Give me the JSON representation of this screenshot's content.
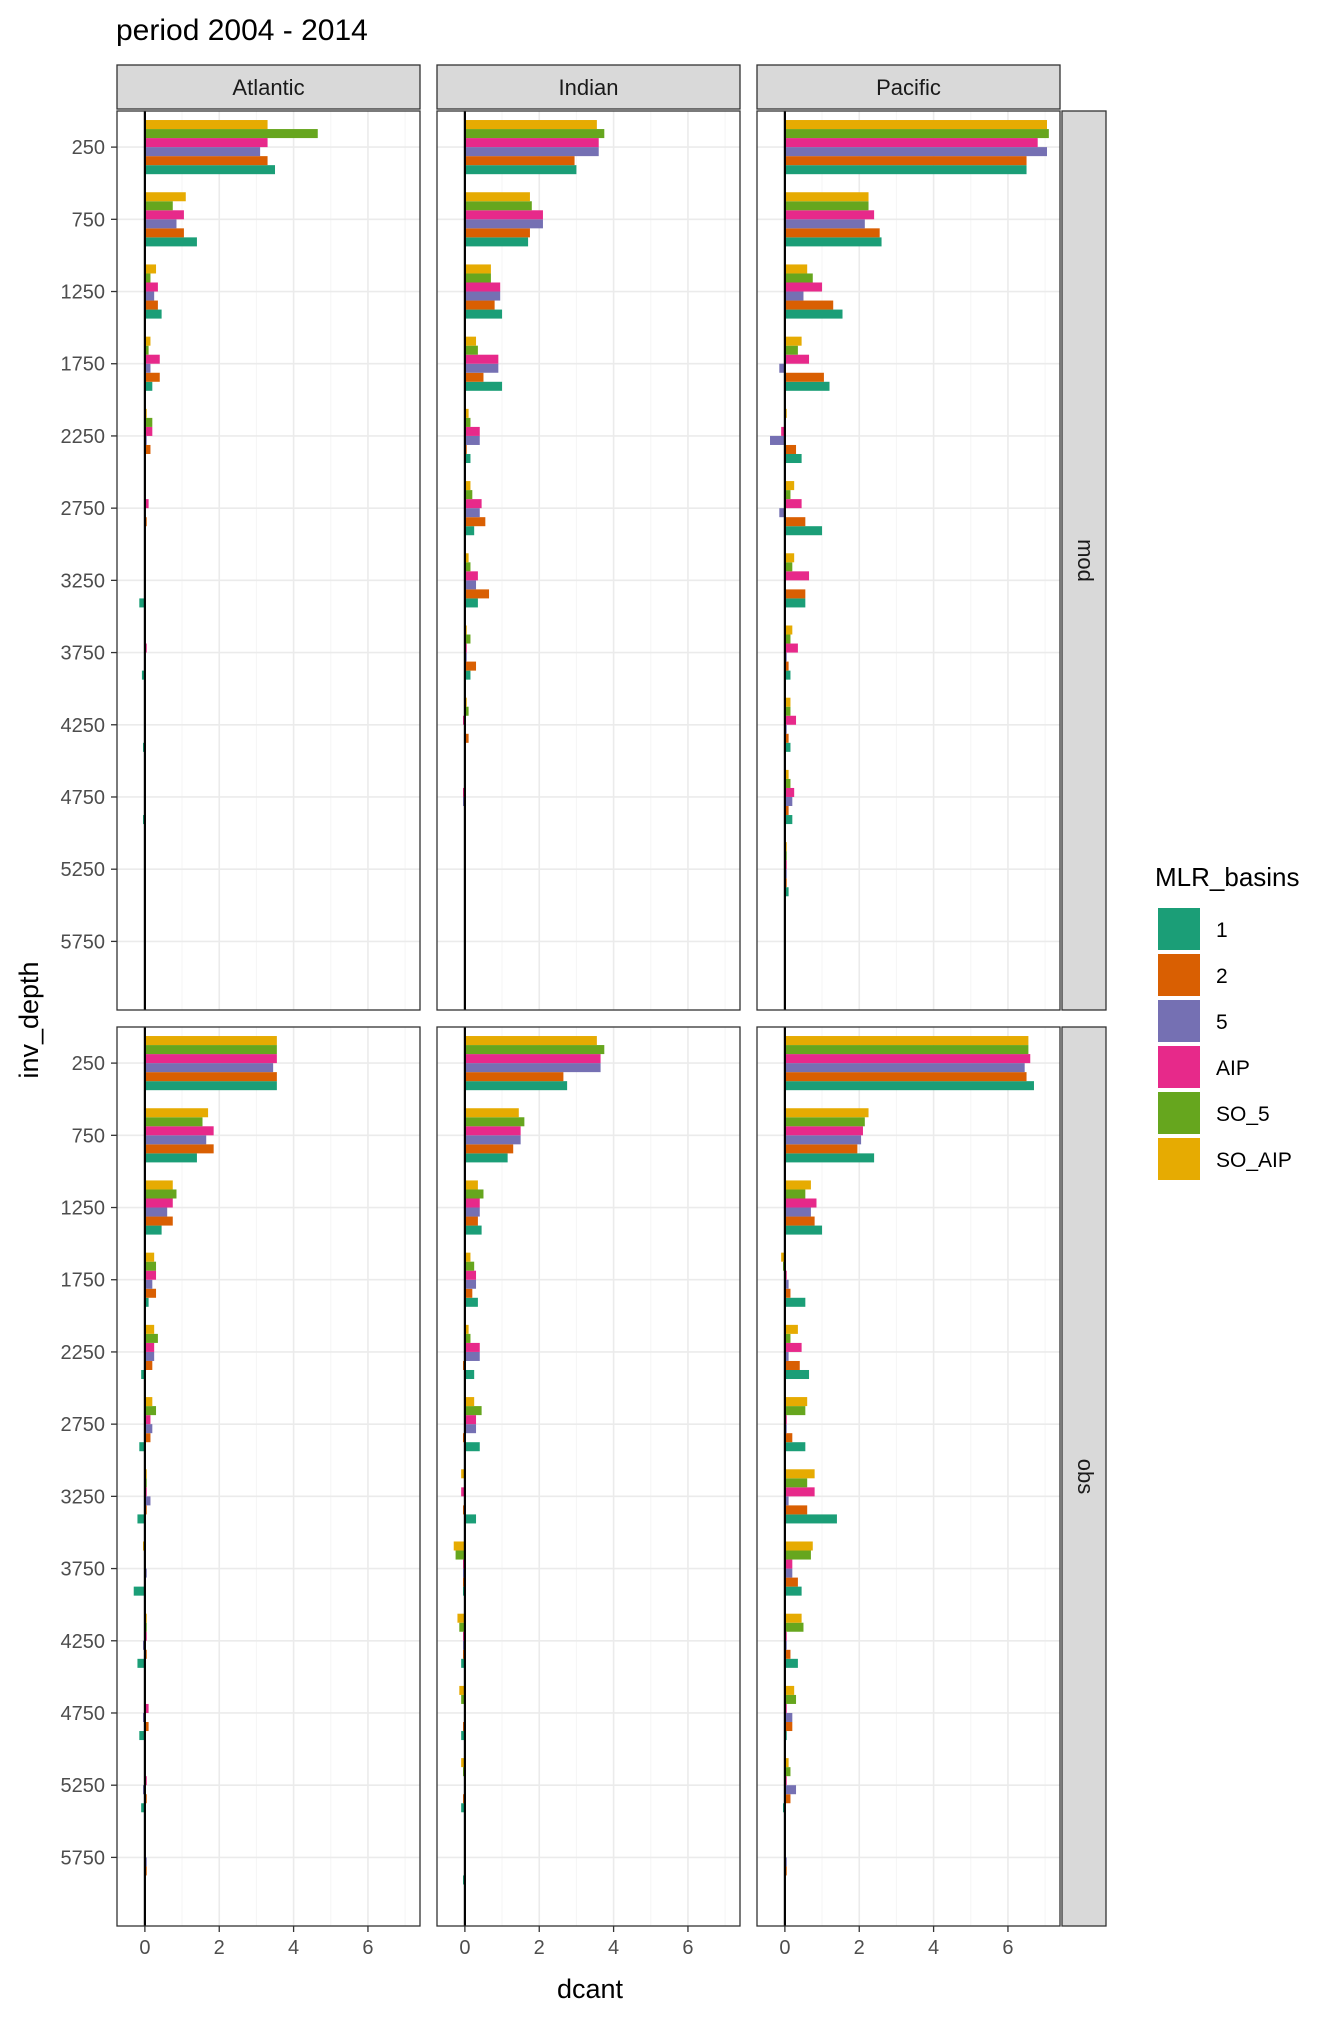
{
  "chart_data": {
    "type": "bar",
    "orientation": "horizontal",
    "title": "period 2004 - 2014",
    "xlabel": "dcant",
    "ylabel": "inv_depth",
    "xlim": [
      -0.75,
      7.4
    ],
    "x_ticks": [
      0,
      2,
      4,
      6
    ],
    "x_tick_labels": [
      "0",
      "2",
      "4",
      "6"
    ],
    "depths": [
      "250",
      "750",
      "1250",
      "1750",
      "2250",
      "2750",
      "3250",
      "3750",
      "4250",
      "4750",
      "5250",
      "5750"
    ],
    "basins": [
      "Atlantic",
      "Indian",
      "Pacific"
    ],
    "rows": [
      "mod",
      "obs"
    ],
    "grid": true,
    "legend": {
      "title": "MLR_basins",
      "position": "right",
      "entries": [
        "1",
        "2",
        "5",
        "AIP",
        "SO_5",
        "SO_AIP"
      ]
    },
    "colors": {
      "1": "#1b9e77",
      "2": "#d95f02",
      "5": "#7570b3",
      "AIP": "#e7298a",
      "SO_5": "#66a61e",
      "SO_AIP": "#e6ab02",
      "strip_fill": "#d9d9d9",
      "grid_major": "#ebebeb",
      "grid_minor": "#f5f5f5"
    },
    "panels": [
      {
        "row": "mod",
        "basin": "Atlantic",
        "series": {
          "1": [
            3.5,
            1.4,
            0.45,
            0.2,
            0.0,
            0.0,
            -0.15,
            -0.08,
            -0.05,
            -0.05,
            0.0,
            0.0
          ],
          "2": [
            3.3,
            1.05,
            0.35,
            0.4,
            0.15,
            0.05,
            0.0,
            0.02,
            0.0,
            0.0,
            0.0,
            0.0
          ],
          "5": [
            3.1,
            0.85,
            0.25,
            0.15,
            0.05,
            0.0,
            0.0,
            0.02,
            0.0,
            0.0,
            0.0,
            0.0
          ],
          "AIP": [
            3.3,
            1.05,
            0.35,
            0.4,
            0.2,
            0.1,
            0.0,
            0.05,
            0.0,
            0.0,
            0.0,
            0.0
          ],
          "SO_5": [
            4.65,
            0.75,
            0.15,
            0.1,
            0.2,
            0.0,
            0.0,
            0.0,
            0.0,
            0.0,
            0.0,
            0.0
          ],
          "SO_AIP": [
            3.3,
            1.1,
            0.3,
            0.15,
            0.05,
            0.02,
            0.0,
            0.0,
            0.0,
            0.0,
            0.0,
            0.0
          ]
        }
      },
      {
        "row": "mod",
        "basin": "Indian",
        "series": {
          "1": [
            3.0,
            1.7,
            1.0,
            1.0,
            0.15,
            0.25,
            0.35,
            0.15,
            0.0,
            0.0,
            0.0,
            0.0
          ],
          "2": [
            2.95,
            1.75,
            0.8,
            0.5,
            0.05,
            0.55,
            0.65,
            0.3,
            0.1,
            0.0,
            0.0,
            0.0
          ],
          "5": [
            3.6,
            2.1,
            0.95,
            0.9,
            0.4,
            0.4,
            0.3,
            0.05,
            0.0,
            -0.05,
            0.0,
            0.0
          ],
          "AIP": [
            3.6,
            2.1,
            0.95,
            0.9,
            0.4,
            0.45,
            0.35,
            0.05,
            -0.05,
            -0.05,
            0.0,
            0.0
          ],
          "SO_5": [
            3.75,
            1.8,
            0.7,
            0.35,
            0.15,
            0.2,
            0.15,
            0.15,
            0.1,
            0.0,
            0.0,
            0.0
          ],
          "SO_AIP": [
            3.55,
            1.75,
            0.7,
            0.3,
            0.1,
            0.15,
            0.1,
            0.05,
            0.05,
            0.0,
            0.0,
            0.0
          ]
        }
      },
      {
        "row": "mod",
        "basin": "Pacific",
        "series": {
          "1": [
            6.5,
            2.6,
            1.55,
            1.2,
            0.45,
            1.0,
            0.55,
            0.15,
            0.15,
            0.2,
            0.1,
            0.0
          ],
          "2": [
            6.5,
            2.55,
            1.3,
            1.05,
            0.3,
            0.55,
            0.55,
            0.1,
            0.1,
            0.1,
            0.05,
            0.0
          ],
          "5": [
            7.05,
            2.15,
            0.5,
            -0.15,
            -0.4,
            -0.15,
            0.0,
            0.05,
            0.05,
            0.2,
            0.05,
            0.0
          ],
          "AIP": [
            6.8,
            2.4,
            1.0,
            0.65,
            -0.1,
            0.45,
            0.65,
            0.35,
            0.3,
            0.25,
            0.05,
            0.0
          ],
          "SO_5": [
            7.1,
            2.25,
            0.75,
            0.35,
            0.0,
            0.15,
            0.2,
            0.15,
            0.15,
            0.15,
            0.05,
            0.0
          ],
          "SO_AIP": [
            7.05,
            2.25,
            0.6,
            0.45,
            0.05,
            0.25,
            0.25,
            0.2,
            0.15,
            0.1,
            0.05,
            0.0
          ]
        }
      },
      {
        "row": "obs",
        "basin": "Atlantic",
        "series": {
          "1": [
            3.55,
            1.4,
            0.45,
            0.1,
            -0.1,
            -0.15,
            -0.2,
            -0.3,
            -0.2,
            -0.15,
            -0.1,
            0.0
          ],
          "2": [
            3.55,
            1.85,
            0.75,
            0.3,
            0.2,
            0.15,
            0.05,
            0.0,
            0.05,
            0.1,
            0.05,
            0.05
          ],
          "5": [
            3.45,
            1.65,
            0.6,
            0.2,
            0.25,
            0.2,
            0.15,
            0.05,
            -0.05,
            -0.05,
            -0.05,
            0.05
          ],
          "AIP": [
            3.55,
            1.85,
            0.75,
            0.3,
            0.25,
            0.15,
            0.05,
            0.0,
            0.05,
            0.1,
            0.05,
            0.0
          ],
          "SO_5": [
            3.55,
            1.55,
            0.85,
            0.3,
            0.35,
            0.3,
            0.05,
            0.0,
            0.05,
            0.0,
            0.0,
            0.0
          ],
          "SO_AIP": [
            3.55,
            1.7,
            0.75,
            0.25,
            0.25,
            0.2,
            0.05,
            -0.05,
            0.05,
            0.0,
            0.0,
            0.0
          ]
        }
      },
      {
        "row": "obs",
        "basin": "Indian",
        "series": {
          "1": [
            2.75,
            1.15,
            0.45,
            0.35,
            0.25,
            0.4,
            0.3,
            -0.05,
            -0.1,
            -0.1,
            -0.1,
            -0.05
          ],
          "2": [
            2.65,
            1.3,
            0.35,
            0.2,
            -0.05,
            -0.05,
            -0.05,
            -0.05,
            -0.05,
            -0.05,
            -0.05,
            0.0
          ],
          "5": [
            3.65,
            1.5,
            0.4,
            0.3,
            0.4,
            0.3,
            0.0,
            -0.05,
            -0.05,
            0.0,
            0.0,
            0.0
          ],
          "AIP": [
            3.65,
            1.5,
            0.4,
            0.3,
            0.4,
            0.3,
            -0.1,
            -0.05,
            -0.05,
            0.0,
            0.0,
            0.0
          ],
          "SO_5": [
            3.75,
            1.6,
            0.5,
            0.25,
            0.15,
            0.45,
            0.0,
            -0.25,
            -0.15,
            -0.1,
            -0.05,
            0.0
          ],
          "SO_AIP": [
            3.55,
            1.45,
            0.35,
            0.15,
            0.1,
            0.25,
            -0.1,
            -0.3,
            -0.2,
            -0.15,
            -0.1,
            0.0
          ]
        }
      },
      {
        "row": "obs",
        "basin": "Pacific",
        "series": {
          "1": [
            6.7,
            2.4,
            1.0,
            0.55,
            0.65,
            0.55,
            1.4,
            0.45,
            0.35,
            0.05,
            -0.05,
            0.0
          ],
          "2": [
            6.5,
            1.95,
            0.8,
            0.15,
            0.4,
            0.2,
            0.6,
            0.35,
            0.15,
            0.2,
            0.15,
            0.05
          ],
          "5": [
            6.45,
            2.05,
            0.7,
            0.1,
            0.1,
            0.05,
            0.1,
            0.2,
            0.05,
            0.2,
            0.3,
            0.05
          ],
          "AIP": [
            6.6,
            2.1,
            0.85,
            0.05,
            0.45,
            0.05,
            0.8,
            0.2,
            0.05,
            0.05,
            0.05,
            0.0
          ],
          "SO_5": [
            6.55,
            2.15,
            0.55,
            -0.05,
            0.15,
            0.55,
            0.6,
            0.7,
            0.5,
            0.3,
            0.15,
            0.0
          ],
          "SO_AIP": [
            6.55,
            2.25,
            0.7,
            -0.1,
            0.35,
            0.6,
            0.8,
            0.75,
            0.45,
            0.25,
            0.1,
            0.0
          ]
        }
      }
    ]
  }
}
